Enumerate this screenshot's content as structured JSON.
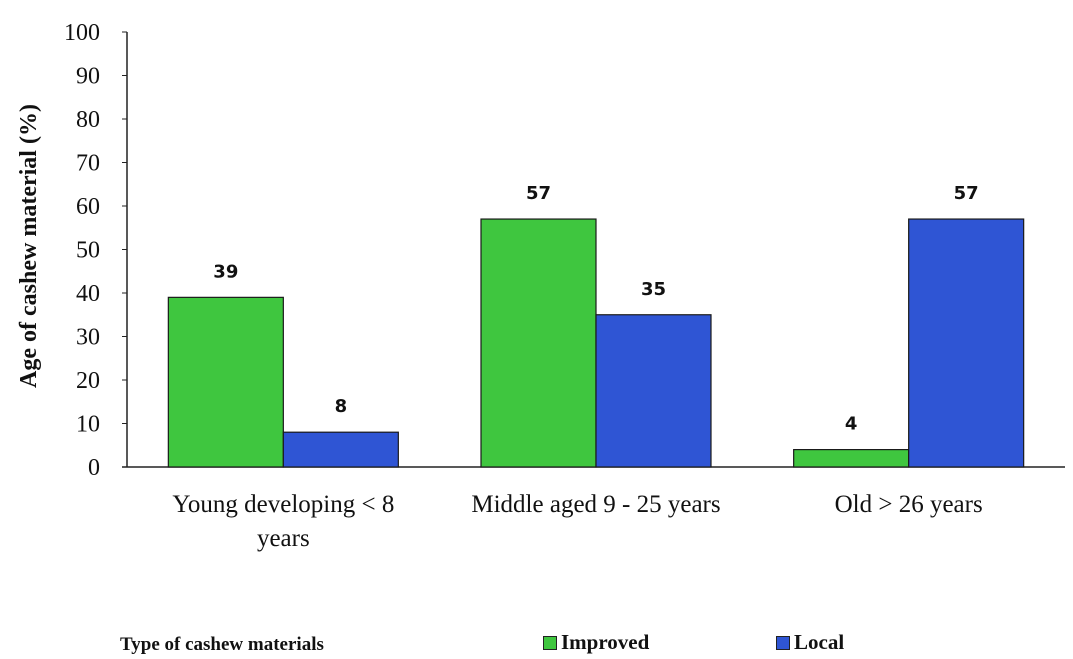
{
  "chart_data": {
    "type": "bar",
    "categories": [
      [
        "Young developing < 8",
        "years"
      ],
      [
        "Middle aged 9 - 25 years"
      ],
      [
        "Old > 26 years"
      ]
    ],
    "series": [
      {
        "name": "Improved",
        "values": [
          39,
          57,
          4
        ],
        "color": "#3fc63f"
      },
      {
        "name": "Local",
        "values": [
          8,
          35,
          57
        ],
        "color": "#2f55d4"
      }
    ],
    "data_labels": [
      [
        "39",
        "57",
        "4"
      ],
      [
        "8",
        "35",
        "57"
      ]
    ],
    "ylabel": "Age of  cashew material (%)",
    "ylim": [
      0,
      100
    ],
    "yticks": [
      0,
      10,
      20,
      30,
      40,
      50,
      60,
      70,
      80,
      90,
      100
    ],
    "legend_title": "Type of cashew materials",
    "legend_position": "bottom",
    "grid": false
  }
}
